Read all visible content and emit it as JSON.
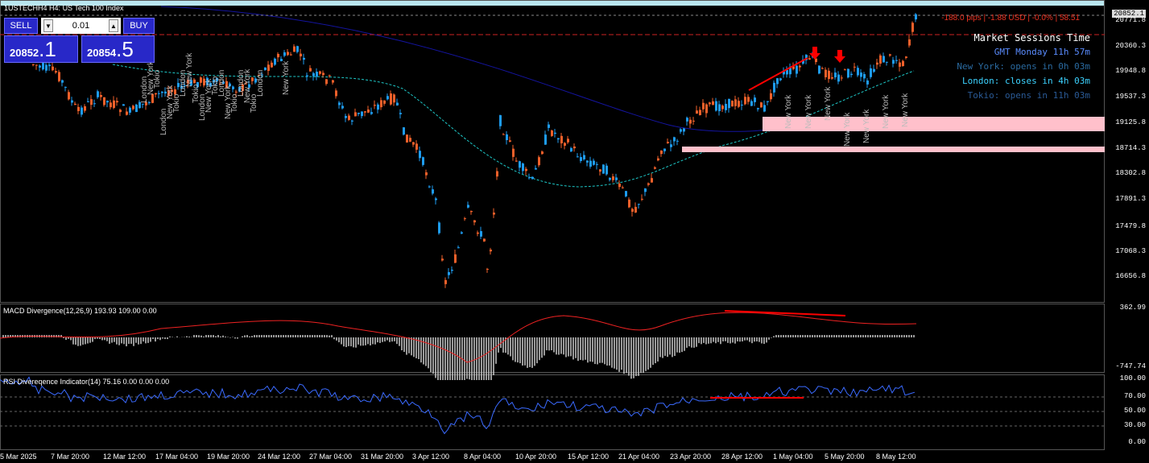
{
  "chart_title": "US Tech 100 Index",
  "symbol": "USTECH",
  "timeframe": "H4",
  "symbol_label": "1USTECHH4",
  "trade": {
    "sell_label": "SELL",
    "buy_label": "BUY",
    "lot_value": "0.01",
    "sell_price_small": "20852",
    "sell_price_big": ".1",
    "buy_price_small": "20854",
    "buy_price_big": ".5"
  },
  "spread_info": "-188.0 pips | -1.88 USD | -0.0% | 58.51",
  "sessions": {
    "title": "Market Sessions Time",
    "gmt": "GMT Monday 11h 57m",
    "new_york": "New York: opens in 0h 03m",
    "london": "London: closes in 4h 03m",
    "tokio": "Tokio: opens in 11h 03m"
  },
  "price_axis": [
    "20852.1",
    "20771.8",
    "20360.3",
    "19948.8",
    "19537.3",
    "19125.8",
    "18714.3",
    "18302.8",
    "17891.3",
    "17479.8",
    "17068.3",
    "16656.8"
  ],
  "macd": {
    "label": "MACD Divergence(12,26,9) 193.93 109.00 0.00",
    "axis": [
      "362.99",
      "-747.74"
    ]
  },
  "rsi": {
    "label": "RSI Divereqence Indicator(14) 75.16 0.00 0.00 0.00",
    "axis": [
      "100.00",
      "70.00",
      "50.00",
      "30.00",
      "0.00"
    ]
  },
  "time_axis": [
    "5 Mar 2025",
    "7 Mar 20:00",
    "12 Mar 12:00",
    "17 Mar 04:00",
    "19 Mar 20:00",
    "24 Mar 12:00",
    "27 Mar 04:00",
    "31 Mar 20:00",
    "3 Apr 12:00",
    "8 Apr 04:00",
    "10 Apr 20:00",
    "15 Apr 12:00",
    "21 Apr 04:00",
    "23 Apr 20:00",
    "28 Apr 12:00",
    "1 May 04:00",
    "5 May 20:00",
    "8 May 12:00"
  ],
  "colors": {
    "bull": "#1e9cf0",
    "bear": "#f0602a",
    "ma_slow": "#1414a0",
    "ma_fast": "#1ec8c8",
    "zone": "#ffc0cb",
    "arrow": "#ff0000",
    "session_gmt": "#5a8cff",
    "session_ny": "#2a6aa0",
    "session_london": "#3cd2ff",
    "session_tokio": "#2a5a96"
  },
  "session_markers": {
    "left_cluster": [
      "London",
      "New York",
      "Tokio",
      "London",
      "New York",
      "Tokio",
      "London",
      "New York",
      "Tokio",
      "London",
      "New York",
      "Tokio",
      "London",
      "New York",
      "Tokio",
      "London",
      "New York",
      "Tokio",
      "London",
      "New York"
    ],
    "right_cluster": [
      "New York",
      "New York",
      "New York",
      "New York",
      "New York",
      "New York",
      "New York"
    ]
  }
}
